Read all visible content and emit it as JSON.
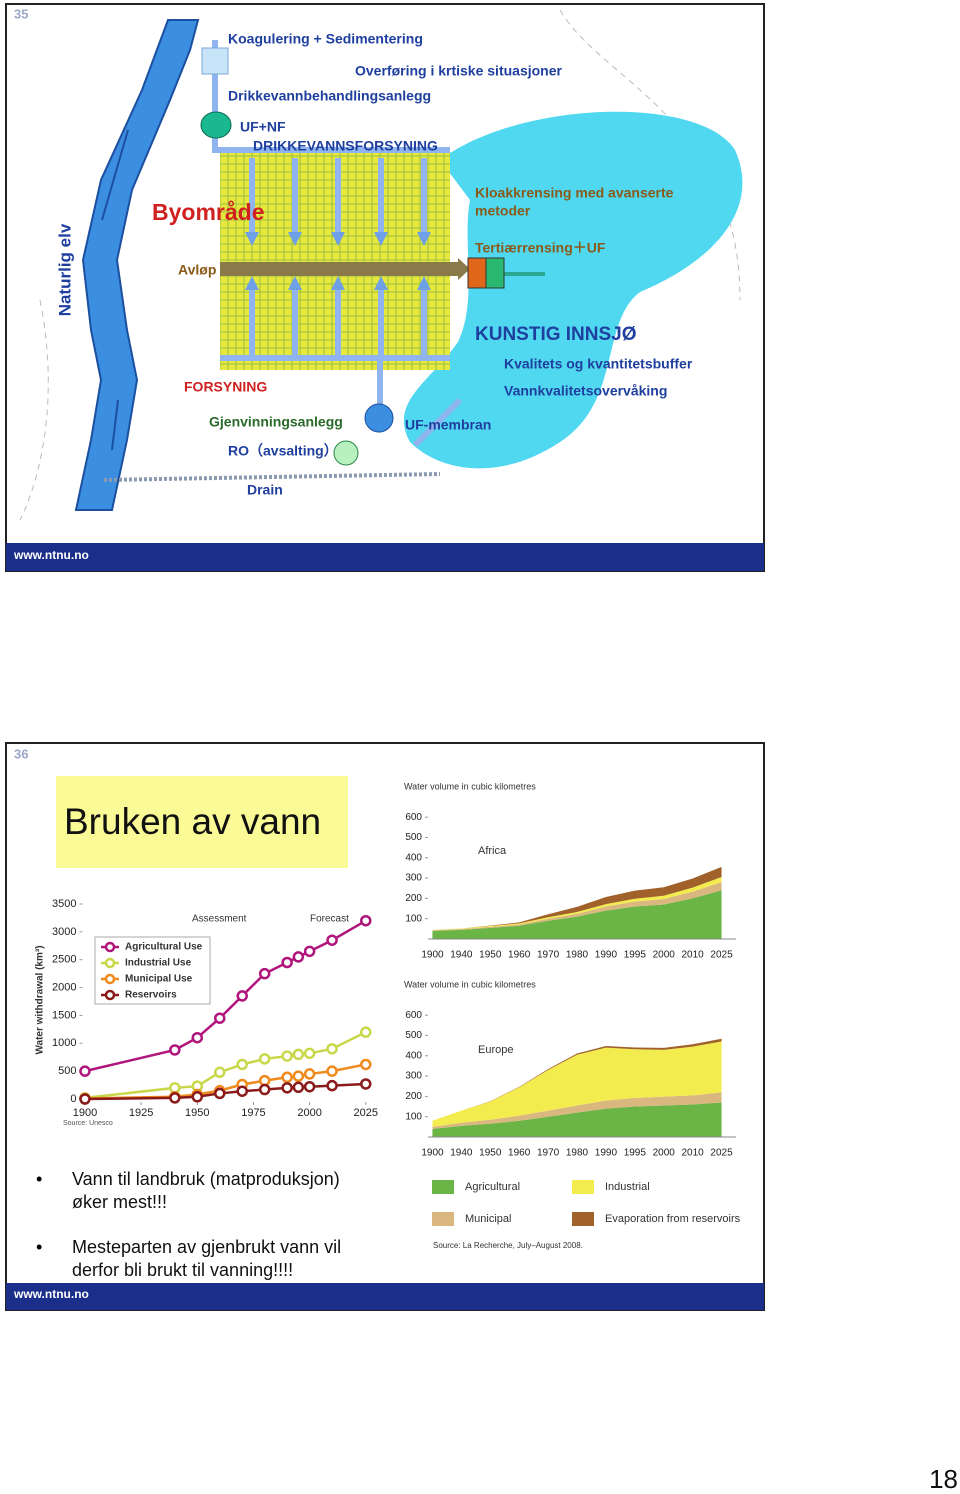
{
  "page_number": "18",
  "slide35": {
    "number": "35",
    "koagulering": "Koagulering + Sedimentering",
    "overforing": "Overføring i krtiske situasjoner",
    "drikkevannbehandling": "Drikkevannbehandlingsanlegg",
    "ufnf": "UF+NF",
    "drikkevannsforsyning": "DRIKKEVANNSFORSYNING",
    "naturlig_elv": "Naturlig elv",
    "byomrade": "Byområde",
    "avlop": "Avløp",
    "kloakkrensing": [
      "Kloakkrensing med avanserte",
      "metoder"
    ],
    "tertiaer": "Tertiærrensing＋UF",
    "innsjo": "KUNSTIG INNSJØ",
    "buffer": "Kvalitets og kvantitetsbuffer",
    "overvaking": "Vannkvalitetsovervåking",
    "forsyning": "FORSYNING",
    "gjenvinning": "Gjenvinningsanlegg",
    "ufmembran": "UF-membran",
    "ro": "RO（avsalting）",
    "drain": "Drain",
    "footer": "www.ntnu.no"
  },
  "slide36": {
    "number": "36",
    "title": "Bruken av vann",
    "bullets": [
      [
        "Vann til landbruk (matproduksjon)",
        "øker mest!!!"
      ],
      [
        "Mesteparten av gjenbrukt vann vil",
        "derfor bli brukt til vanning!!!!"
      ]
    ],
    "footer": "www.ntnu.no",
    "withdrawal_chart": {
      "type": "line",
      "y_label": "Water withdrawal (km³)",
      "annotations": [
        "Assessment",
        "Forecast"
      ],
      "source": "Source: Unesco",
      "x": [
        1900,
        1940,
        1950,
        1960,
        1970,
        1980,
        1990,
        1995,
        2000,
        2010,
        2025
      ],
      "xlim": [
        1890,
        2030
      ],
      "xticks": [
        1900,
        1925,
        1950,
        1975,
        2000,
        2025
      ],
      "ylim": [
        0,
        3500
      ],
      "yticks": [
        0,
        500,
        1000,
        1500,
        2000,
        2500,
        3000,
        3500
      ],
      "series": [
        {
          "name": "Agricultural Use",
          "color": "#b0157c",
          "values": [
            500,
            880,
            1100,
            1450,
            1850,
            2250,
            2450,
            2550,
            2650,
            2850,
            3200
          ]
        },
        {
          "name": "Industrial Use",
          "color": "#c8d84a",
          "values": [
            20,
            200,
            230,
            480,
            620,
            720,
            770,
            800,
            820,
            900,
            1200
          ]
        },
        {
          "name": "Municipal Use",
          "color": "#f08a1c",
          "values": [
            10,
            40,
            80,
            150,
            260,
            330,
            390,
            410,
            450,
            500,
            620
          ]
        },
        {
          "name": "Reservoirs",
          "color": "#8b1a1a",
          "values": [
            0,
            20,
            40,
            100,
            140,
            170,
            200,
            210,
            220,
            240,
            270
          ]
        }
      ]
    },
    "africa_chart": {
      "type": "area",
      "y_label": "Water volume in cubic kilometres",
      "region": "Africa",
      "categories": [
        "1900",
        "1940",
        "1950",
        "1960",
        "1970",
        "1980",
        "1990",
        "1995",
        "2000",
        "2010",
        "2025"
      ],
      "ylim": [
        0,
        650
      ],
      "yticks": [
        100,
        200,
        300,
        400,
        500,
        600
      ],
      "series": [
        {
          "name": "Agricultural",
          "color": "#6ab545",
          "values": [
            40,
            45,
            55,
            65,
            90,
            110,
            140,
            160,
            170,
            200,
            240
          ]
        },
        {
          "name": "Municipal",
          "color": "#d9b77f",
          "values": [
            3,
            4,
            5,
            7,
            10,
            14,
            20,
            24,
            27,
            33,
            40
          ]
        },
        {
          "name": "Industrial",
          "color": "#f3ec4f",
          "values": [
            2,
            3,
            4,
            5,
            7,
            9,
            12,
            14,
            16,
            20,
            25
          ]
        },
        {
          "name": "Evaporation from reservoirs",
          "color": "#a0612a",
          "values": [
            0,
            0,
            2,
            5,
            15,
            25,
            35,
            40,
            42,
            45,
            50
          ]
        }
      ]
    },
    "europe_chart": {
      "type": "area",
      "y_label": "Water volume in cubic kilometres",
      "region": "Europe",
      "categories": [
        "1900",
        "1940",
        "1950",
        "1960",
        "1970",
        "1980",
        "1990",
        "1995",
        "2000",
        "2010",
        "2025"
      ],
      "ylim": [
        0,
        650
      ],
      "yticks": [
        100,
        200,
        300,
        400,
        500,
        600
      ],
      "series": [
        {
          "name": "Agricultural",
          "color": "#6ab545",
          "values": [
            40,
            55,
            65,
            80,
            100,
            120,
            140,
            150,
            155,
            160,
            170
          ]
        },
        {
          "name": "Municipal",
          "color": "#d9b77f",
          "values": [
            10,
            15,
            20,
            25,
            30,
            35,
            40,
            42,
            44,
            45,
            50
          ]
        },
        {
          "name": "Industrial",
          "color": "#f3ec4f",
          "values": [
            30,
            60,
            90,
            140,
            200,
            250,
            260,
            240,
            230,
            240,
            250
          ]
        },
        {
          "name": "Evaporation from reservoirs",
          "color": "#a0612a",
          "values": [
            0,
            0,
            1,
            2,
            4,
            6,
            8,
            9,
            10,
            12,
            14
          ]
        }
      ]
    },
    "source": "Source: La Recherche, July–August 2008."
  }
}
